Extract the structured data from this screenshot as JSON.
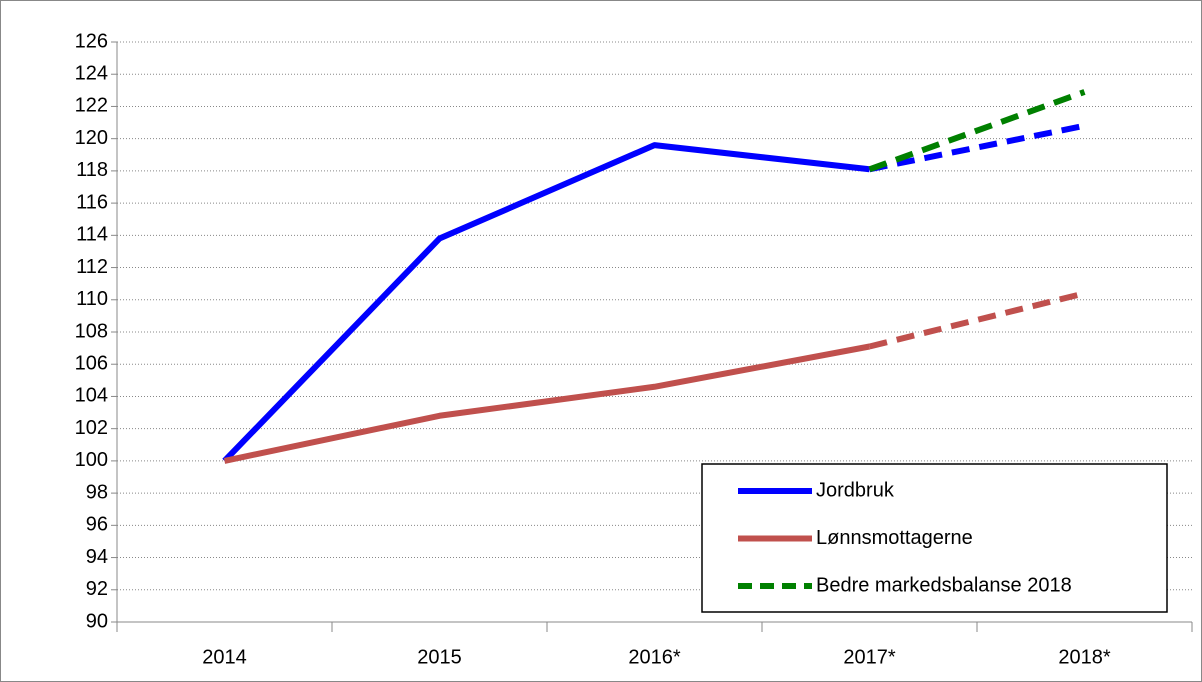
{
  "chart_data": {
    "type": "line",
    "categories": [
      "2014",
      "2015",
      "2016*",
      "2017*",
      "2018*"
    ],
    "series": [
      {
        "name": "Jordbruk",
        "color": "#0000ff",
        "values": [
          100,
          113.8,
          119.6,
          118.1,
          120.8
        ],
        "dash_from": 3
      },
      {
        "name": "Lønnsmottagerne",
        "color": "#c0504d",
        "values": [
          100,
          102.8,
          104.6,
          107.1,
          110.4
        ],
        "dash_from": 3
      },
      {
        "name": "Bedre markedsbalanse 2018",
        "color": "#008000",
        "values": [
          null,
          null,
          null,
          118.1,
          122.9
        ],
        "dash_from": 0
      }
    ],
    "ylim": [
      90,
      126
    ],
    "yticks": [
      90,
      92,
      94,
      96,
      98,
      100,
      102,
      104,
      106,
      108,
      110,
      112,
      114,
      116,
      118,
      120,
      122,
      124,
      126
    ],
    "grid": true,
    "legend": "lower right"
  }
}
